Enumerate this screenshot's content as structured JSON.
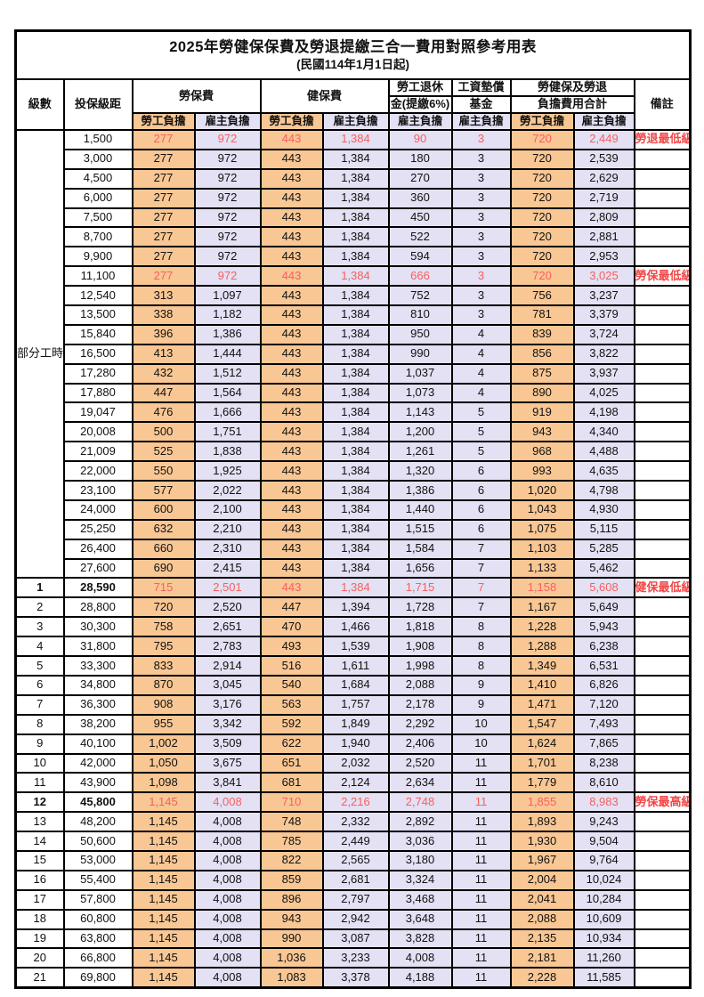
{
  "title": "2025年勞健保保費及勞退提繳三合一費用對照參考用表",
  "subtitle": "(民國114年1月1日起)",
  "colors": {
    "worker_column_bg": "#F8C794",
    "employer_column_bg": "#E3E1F3",
    "highlight_number_text": "#F75F5F",
    "remark_text": "#F24747",
    "border": "#000000"
  },
  "header": {
    "level": "級數",
    "bracket": "投保級距",
    "labor_insurance": "勞保費",
    "health_insurance": "健保費",
    "pension_line1": "勞工退休",
    "pension_line2": "金(提繳6%)",
    "wage_fund_line1": "工資墊償",
    "wage_fund_line2": "基金",
    "total_line1": "勞健保及勞退",
    "total_line2": "負擔費用合計",
    "remark": "備註",
    "worker_burden": "勞工負擔",
    "employer_burden": "雇主負擔"
  },
  "table": {
    "part_time_label": "部分工時",
    "part_time_rowspan": 23,
    "row_schema": [
      "level",
      "bracket",
      "labor_worker",
      "labor_employer",
      "health_worker",
      "health_employer",
      "pension_employer",
      "wage_fund_employer",
      "total_worker",
      "total_employer",
      "remark",
      "flag (0=normal,1=red,2=red+bold level/bracket)"
    ],
    "rows": [
      [
        "",
        "1,500",
        "277",
        "972",
        "443",
        "1,384",
        "90",
        "3",
        "720",
        "2,449",
        "勞退最低級距",
        1
      ],
      [
        "",
        "3,000",
        "277",
        "972",
        "443",
        "1,384",
        "180",
        "3",
        "720",
        "2,539",
        "",
        0
      ],
      [
        "",
        "4,500",
        "277",
        "972",
        "443",
        "1,384",
        "270",
        "3",
        "720",
        "2,629",
        "",
        0
      ],
      [
        "",
        "6,000",
        "277",
        "972",
        "443",
        "1,384",
        "360",
        "3",
        "720",
        "2,719",
        "",
        0
      ],
      [
        "",
        "7,500",
        "277",
        "972",
        "443",
        "1,384",
        "450",
        "3",
        "720",
        "2,809",
        "",
        0
      ],
      [
        "",
        "8,700",
        "277",
        "972",
        "443",
        "1,384",
        "522",
        "3",
        "720",
        "2,881",
        "",
        0
      ],
      [
        "",
        "9,900",
        "277",
        "972",
        "443",
        "1,384",
        "594",
        "3",
        "720",
        "2,953",
        "",
        0
      ],
      [
        "",
        "11,100",
        "277",
        "972",
        "443",
        "1,384",
        "666",
        "3",
        "720",
        "3,025",
        "勞保最低級距",
        1
      ],
      [
        "",
        "12,540",
        "313",
        "1,097",
        "443",
        "1,384",
        "752",
        "3",
        "756",
        "3,237",
        "",
        0
      ],
      [
        "",
        "13,500",
        "338",
        "1,182",
        "443",
        "1,384",
        "810",
        "3",
        "781",
        "3,379",
        "",
        0
      ],
      [
        "",
        "15,840",
        "396",
        "1,386",
        "443",
        "1,384",
        "950",
        "4",
        "839",
        "3,724",
        "",
        0
      ],
      [
        "",
        "16,500",
        "413",
        "1,444",
        "443",
        "1,384",
        "990",
        "4",
        "856",
        "3,822",
        "",
        0
      ],
      [
        "",
        "17,280",
        "432",
        "1,512",
        "443",
        "1,384",
        "1,037",
        "4",
        "875",
        "3,937",
        "",
        0
      ],
      [
        "",
        "17,880",
        "447",
        "1,564",
        "443",
        "1,384",
        "1,073",
        "4",
        "890",
        "4,025",
        "",
        0
      ],
      [
        "",
        "19,047",
        "476",
        "1,666",
        "443",
        "1,384",
        "1,143",
        "5",
        "919",
        "4,198",
        "",
        0
      ],
      [
        "",
        "20,008",
        "500",
        "1,751",
        "443",
        "1,384",
        "1,200",
        "5",
        "943",
        "4,340",
        "",
        0
      ],
      [
        "",
        "21,009",
        "525",
        "1,838",
        "443",
        "1,384",
        "1,261",
        "5",
        "968",
        "4,488",
        "",
        0
      ],
      [
        "",
        "22,000",
        "550",
        "1,925",
        "443",
        "1,384",
        "1,320",
        "6",
        "993",
        "4,635",
        "",
        0
      ],
      [
        "",
        "23,100",
        "577",
        "2,022",
        "443",
        "1,384",
        "1,386",
        "6",
        "1,020",
        "4,798",
        "",
        0
      ],
      [
        "",
        "24,000",
        "600",
        "2,100",
        "443",
        "1,384",
        "1,440",
        "6",
        "1,043",
        "4,930",
        "",
        0
      ],
      [
        "",
        "25,250",
        "632",
        "2,210",
        "443",
        "1,384",
        "1,515",
        "6",
        "1,075",
        "5,115",
        "",
        0
      ],
      [
        "",
        "26,400",
        "660",
        "2,310",
        "443",
        "1,384",
        "1,584",
        "7",
        "1,103",
        "5,285",
        "",
        0
      ],
      [
        "",
        "27,600",
        "690",
        "2,415",
        "443",
        "1,384",
        "1,656",
        "7",
        "1,133",
        "5,462",
        "",
        0
      ],
      [
        "1",
        "28,590",
        "715",
        "2,501",
        "443",
        "1,384",
        "1,715",
        "7",
        "1,158",
        "5,608",
        "健保最低級距",
        2
      ],
      [
        "2",
        "28,800",
        "720",
        "2,520",
        "447",
        "1,394",
        "1,728",
        "7",
        "1,167",
        "5,649",
        "",
        0
      ],
      [
        "3",
        "30,300",
        "758",
        "2,651",
        "470",
        "1,466",
        "1,818",
        "8",
        "1,228",
        "5,943",
        "",
        0
      ],
      [
        "4",
        "31,800",
        "795",
        "2,783",
        "493",
        "1,539",
        "1,908",
        "8",
        "1,288",
        "6,238",
        "",
        0
      ],
      [
        "5",
        "33,300",
        "833",
        "2,914",
        "516",
        "1,611",
        "1,998",
        "8",
        "1,349",
        "6,531",
        "",
        0
      ],
      [
        "6",
        "34,800",
        "870",
        "3,045",
        "540",
        "1,684",
        "2,088",
        "9",
        "1,410",
        "6,826",
        "",
        0
      ],
      [
        "7",
        "36,300",
        "908",
        "3,176",
        "563",
        "1,757",
        "2,178",
        "9",
        "1,471",
        "7,120",
        "",
        0
      ],
      [
        "8",
        "38,200",
        "955",
        "3,342",
        "592",
        "1,849",
        "2,292",
        "10",
        "1,547",
        "7,493",
        "",
        0
      ],
      [
        "9",
        "40,100",
        "1,002",
        "3,509",
        "622",
        "1,940",
        "2,406",
        "10",
        "1,624",
        "7,865",
        "",
        0
      ],
      [
        "10",
        "42,000",
        "1,050",
        "3,675",
        "651",
        "2,032",
        "2,520",
        "11",
        "1,701",
        "8,238",
        "",
        0
      ],
      [
        "11",
        "43,900",
        "1,098",
        "3,841",
        "681",
        "2,124",
        "2,634",
        "11",
        "1,779",
        "8,610",
        "",
        0
      ],
      [
        "12",
        "45,800",
        "1,145",
        "4,008",
        "710",
        "2,216",
        "2,748",
        "11",
        "1,855",
        "8,983",
        "勞保最高級距",
        2
      ],
      [
        "13",
        "48,200",
        "1,145",
        "4,008",
        "748",
        "2,332",
        "2,892",
        "11",
        "1,893",
        "9,243",
        "",
        0
      ],
      [
        "14",
        "50,600",
        "1,145",
        "4,008",
        "785",
        "2,449",
        "3,036",
        "11",
        "1,930",
        "9,504",
        "",
        0
      ],
      [
        "15",
        "53,000",
        "1,145",
        "4,008",
        "822",
        "2,565",
        "3,180",
        "11",
        "1,967",
        "9,764",
        "",
        0
      ],
      [
        "16",
        "55,400",
        "1,145",
        "4,008",
        "859",
        "2,681",
        "3,324",
        "11",
        "2,004",
        "10,024",
        "",
        0
      ],
      [
        "17",
        "57,800",
        "1,145",
        "4,008",
        "896",
        "2,797",
        "3,468",
        "11",
        "2,041",
        "10,284",
        "",
        0
      ],
      [
        "18",
        "60,800",
        "1,145",
        "4,008",
        "943",
        "2,942",
        "3,648",
        "11",
        "2,088",
        "10,609",
        "",
        0
      ],
      [
        "19",
        "63,800",
        "1,145",
        "4,008",
        "990",
        "3,087",
        "3,828",
        "11",
        "2,135",
        "10,934",
        "",
        0
      ],
      [
        "20",
        "66,800",
        "1,145",
        "4,008",
        "1,036",
        "3,233",
        "4,008",
        "11",
        "2,181",
        "11,260",
        "",
        0
      ],
      [
        "21",
        "69,800",
        "1,145",
        "4,008",
        "1,083",
        "3,378",
        "4,188",
        "11",
        "2,228",
        "11,585",
        "",
        0
      ]
    ]
  }
}
